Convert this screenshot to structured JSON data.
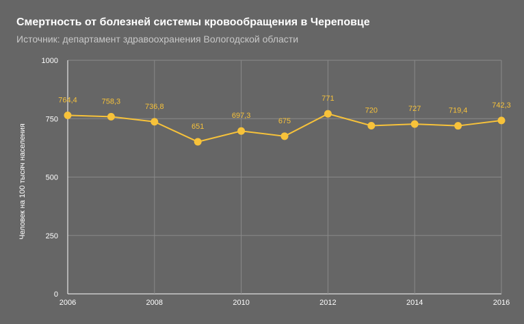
{
  "chart_data": {
    "type": "line",
    "title": "Смертность от болезней системы кровообращения в Череповце",
    "subtitle": "Источник: департамент здравоохранения Вологодской области",
    "xlabel": "",
    "ylabel": "Человек на 100 тысяч населения",
    "x": [
      2006,
      2007,
      2008,
      2009,
      2010,
      2011,
      2012,
      2013,
      2014,
      2015,
      2016
    ],
    "x_tick_labels": [
      "2006",
      "2008",
      "2010",
      "2012",
      "2014",
      "2016"
    ],
    "x_ticks": [
      2006,
      2008,
      2010,
      2012,
      2014,
      2016
    ],
    "xlim": [
      2006,
      2016
    ],
    "ylim": [
      0,
      1000
    ],
    "y_ticks": [
      0,
      250,
      500,
      750,
      1000
    ],
    "y_tick_labels": [
      "0",
      "250",
      "500",
      "750",
      "1000"
    ],
    "grid": true,
    "series": [
      {
        "values": [
          764.4,
          758.3,
          736.8,
          651,
          697.3,
          675,
          771,
          720,
          727,
          719.4,
          742.3
        ],
        "data_labels": [
          "764,4",
          "758,3",
          "736,8",
          "651",
          "697,3",
          "675",
          "771",
          "720",
          "727",
          "719,4",
          "742,3"
        ],
        "color": "#f7c23a"
      }
    ]
  }
}
